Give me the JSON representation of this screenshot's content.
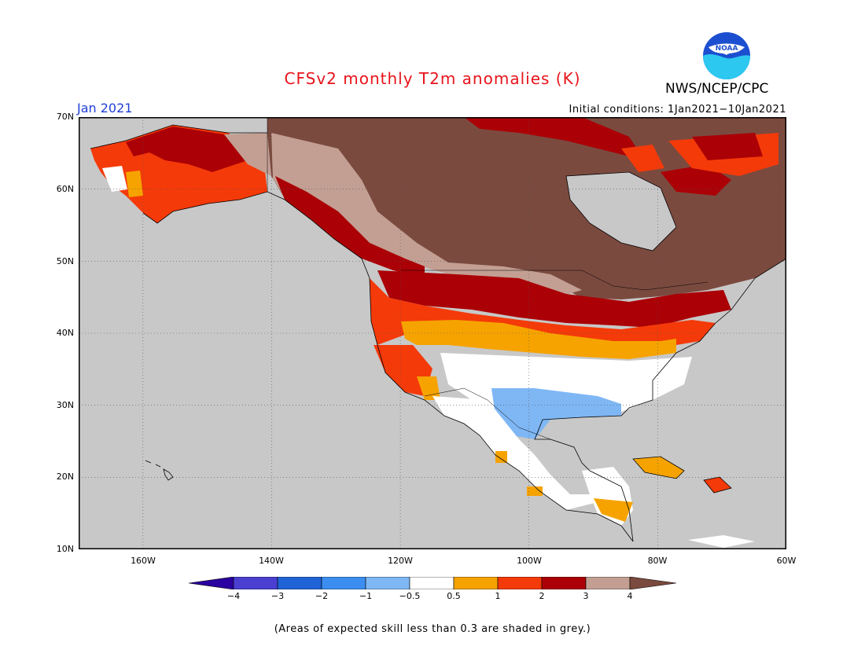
{
  "header": {
    "title": "CFSv2 monthly T2m anomalies (K)",
    "agency": "NWS/NCEP/CPC",
    "logo_text": "NOAA",
    "month": "Jan 2021",
    "initial_conditions": "Initial conditions: 1Jan2021−10Jan2021"
  },
  "axes": {
    "lat_labels": [
      "70N",
      "60N",
      "50N",
      "40N",
      "30N",
      "20N",
      "10N"
    ],
    "lon_labels": [
      "160W",
      "140W",
      "120W",
      "100W",
      "80W",
      "60W"
    ]
  },
  "colorbar": {
    "labels": [
      "−4",
      "−3",
      "−2",
      "−1",
      "−0.5",
      "0.5",
      "1",
      "2",
      "3",
      "4"
    ],
    "colors": [
      "#2a00a0",
      "#4a3fd0",
      "#1f63d6",
      "#3b8ef0",
      "#7fb7f5",
      "#ffffff",
      "#f6a300",
      "#f43a09",
      "#aa0006",
      "#c39f93",
      "#7b4a3f"
    ]
  },
  "colors": {
    "skill_grey": "#c8c8c8",
    "neutral": "#ffffff",
    "warm_05_1": "#f6a300",
    "warm_1_2": "#f43a09",
    "warm_2_3": "#aa0006",
    "warm_3_4": "#c39f93",
    "warm_gt4": "#7b4a3f",
    "cool_05_1": "#7fb7f5",
    "title_red": "#e8141b",
    "month_blue": "#1f3fd6"
  },
  "footnote": "(Areas of expected skill less than 0.3 are shaded in grey.)"
}
